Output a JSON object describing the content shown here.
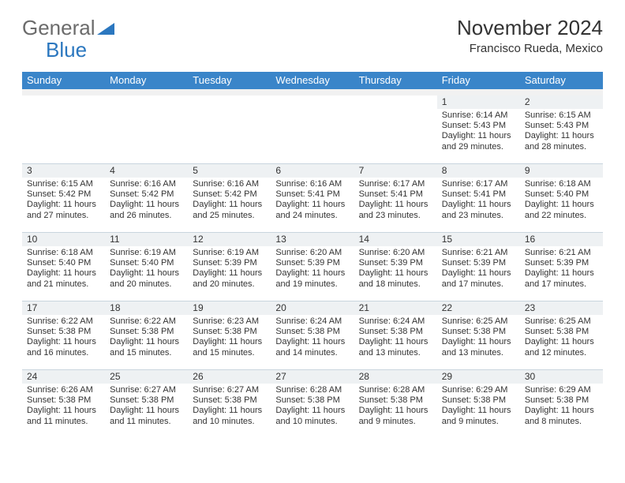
{
  "logo": {
    "text1": "General",
    "text2": "Blue"
  },
  "title": "November 2024",
  "location": "Francisco Rueda, Mexico",
  "colors": {
    "header_bg": "#3a85c9",
    "header_text": "#ffffff",
    "week_border": "#c9d5de",
    "daynum_bg": "#eef1f3",
    "text": "#333333",
    "logo_gray": "#6b6b6b",
    "logo_blue": "#2b77bf"
  },
  "weekdays": [
    "Sunday",
    "Monday",
    "Tuesday",
    "Wednesday",
    "Thursday",
    "Friday",
    "Saturday"
  ],
  "weeks": [
    [
      null,
      null,
      null,
      null,
      null,
      {
        "n": "1",
        "sunrise": "6:14 AM",
        "sunset": "5:43 PM",
        "day_h": 11,
        "day_m": 29
      },
      {
        "n": "2",
        "sunrise": "6:15 AM",
        "sunset": "5:43 PM",
        "day_h": 11,
        "day_m": 28
      }
    ],
    [
      {
        "n": "3",
        "sunrise": "6:15 AM",
        "sunset": "5:42 PM",
        "day_h": 11,
        "day_m": 27
      },
      {
        "n": "4",
        "sunrise": "6:16 AM",
        "sunset": "5:42 PM",
        "day_h": 11,
        "day_m": 26
      },
      {
        "n": "5",
        "sunrise": "6:16 AM",
        "sunset": "5:42 PM",
        "day_h": 11,
        "day_m": 25
      },
      {
        "n": "6",
        "sunrise": "6:16 AM",
        "sunset": "5:41 PM",
        "day_h": 11,
        "day_m": 24
      },
      {
        "n": "7",
        "sunrise": "6:17 AM",
        "sunset": "5:41 PM",
        "day_h": 11,
        "day_m": 23
      },
      {
        "n": "8",
        "sunrise": "6:17 AM",
        "sunset": "5:41 PM",
        "day_h": 11,
        "day_m": 23
      },
      {
        "n": "9",
        "sunrise": "6:18 AM",
        "sunset": "5:40 PM",
        "day_h": 11,
        "day_m": 22
      }
    ],
    [
      {
        "n": "10",
        "sunrise": "6:18 AM",
        "sunset": "5:40 PM",
        "day_h": 11,
        "day_m": 21
      },
      {
        "n": "11",
        "sunrise": "6:19 AM",
        "sunset": "5:40 PM",
        "day_h": 11,
        "day_m": 20
      },
      {
        "n": "12",
        "sunrise": "6:19 AM",
        "sunset": "5:39 PM",
        "day_h": 11,
        "day_m": 20
      },
      {
        "n": "13",
        "sunrise": "6:20 AM",
        "sunset": "5:39 PM",
        "day_h": 11,
        "day_m": 19
      },
      {
        "n": "14",
        "sunrise": "6:20 AM",
        "sunset": "5:39 PM",
        "day_h": 11,
        "day_m": 18
      },
      {
        "n": "15",
        "sunrise": "6:21 AM",
        "sunset": "5:39 PM",
        "day_h": 11,
        "day_m": 17
      },
      {
        "n": "16",
        "sunrise": "6:21 AM",
        "sunset": "5:39 PM",
        "day_h": 11,
        "day_m": 17
      }
    ],
    [
      {
        "n": "17",
        "sunrise": "6:22 AM",
        "sunset": "5:38 PM",
        "day_h": 11,
        "day_m": 16
      },
      {
        "n": "18",
        "sunrise": "6:22 AM",
        "sunset": "5:38 PM",
        "day_h": 11,
        "day_m": 15
      },
      {
        "n": "19",
        "sunrise": "6:23 AM",
        "sunset": "5:38 PM",
        "day_h": 11,
        "day_m": 15
      },
      {
        "n": "20",
        "sunrise": "6:24 AM",
        "sunset": "5:38 PM",
        "day_h": 11,
        "day_m": 14
      },
      {
        "n": "21",
        "sunrise": "6:24 AM",
        "sunset": "5:38 PM",
        "day_h": 11,
        "day_m": 13
      },
      {
        "n": "22",
        "sunrise": "6:25 AM",
        "sunset": "5:38 PM",
        "day_h": 11,
        "day_m": 13
      },
      {
        "n": "23",
        "sunrise": "6:25 AM",
        "sunset": "5:38 PM",
        "day_h": 11,
        "day_m": 12
      }
    ],
    [
      {
        "n": "24",
        "sunrise": "6:26 AM",
        "sunset": "5:38 PM",
        "day_h": 11,
        "day_m": 11
      },
      {
        "n": "25",
        "sunrise": "6:27 AM",
        "sunset": "5:38 PM",
        "day_h": 11,
        "day_m": 11
      },
      {
        "n": "26",
        "sunrise": "6:27 AM",
        "sunset": "5:38 PM",
        "day_h": 11,
        "day_m": 10
      },
      {
        "n": "27",
        "sunrise": "6:28 AM",
        "sunset": "5:38 PM",
        "day_h": 11,
        "day_m": 10
      },
      {
        "n": "28",
        "sunrise": "6:28 AM",
        "sunset": "5:38 PM",
        "day_h": 11,
        "day_m": 9
      },
      {
        "n": "29",
        "sunrise": "6:29 AM",
        "sunset": "5:38 PM",
        "day_h": 11,
        "day_m": 9
      },
      {
        "n": "30",
        "sunrise": "6:29 AM",
        "sunset": "5:38 PM",
        "day_h": 11,
        "day_m": 8
      }
    ]
  ],
  "labels": {
    "sunrise": "Sunrise: ",
    "sunset": "Sunset: ",
    "daylight_prefix": "Daylight: ",
    "hours_word": " hours",
    "and_word": "and ",
    "minutes_word": " minutes."
  }
}
